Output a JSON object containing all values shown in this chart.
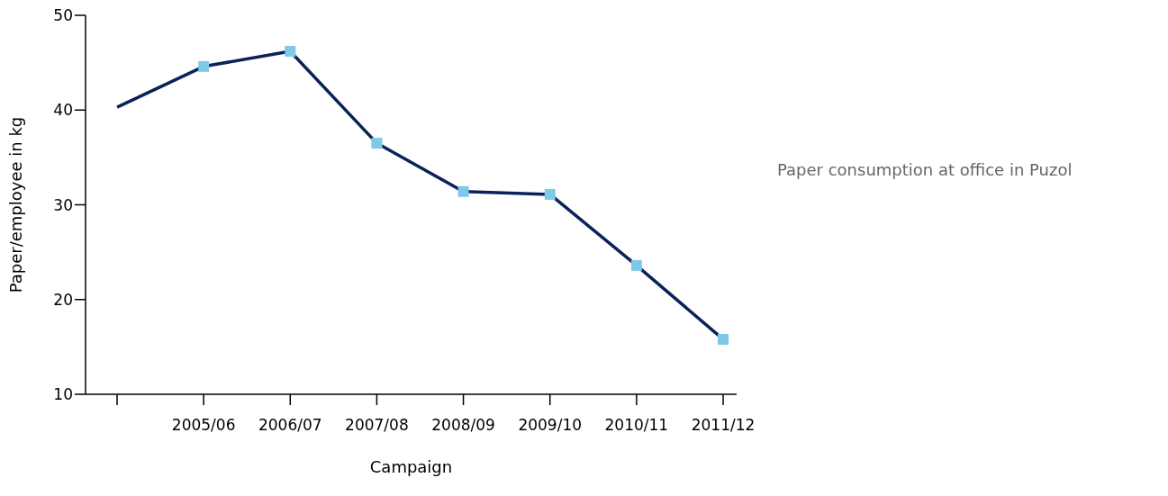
{
  "chart_data": {
    "type": "line",
    "xlabel": "Campaign",
    "ylabel": "Paper/employee in kg",
    "annotations": [
      "Paper consumption at office in Puzol"
    ],
    "categories": [
      null,
      "2005/06",
      "2006/07",
      "2007/08",
      "2008/09",
      "2009/10",
      "2010/11",
      "2011/12"
    ],
    "series": [
      {
        "color": "#0b2259",
        "values": [
          40.3,
          44.6,
          46.2,
          36.5,
          31.4,
          31.1,
          23.6,
          15.8
        ]
      }
    ],
    "marker": "square",
    "ylim": [
      10,
      50
    ],
    "yticks": [
      10,
      20,
      30,
      40,
      50
    ],
    "grid": false
  }
}
